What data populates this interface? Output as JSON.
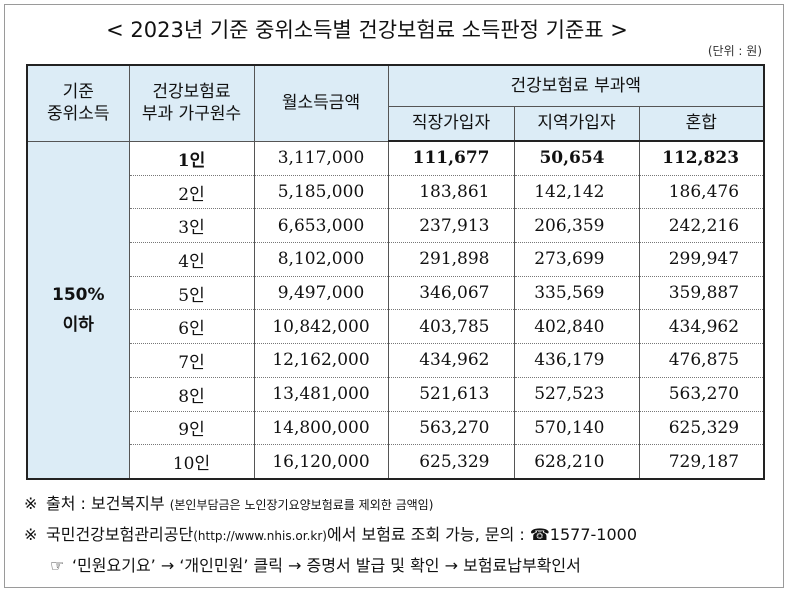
{
  "title": "< 2023년 기준 중위소득별 건강보험료 소득판정 기준표 >",
  "unit": "(단위 : 원)",
  "headers": {
    "median_income": "기준\n중위소득",
    "household": "건강보험료\n부과 가구원수",
    "monthly_income": "월소득금액",
    "premium_group": "건강보험료 부과액",
    "employee": "직장가입자",
    "regional": "지역가입자",
    "mixed": "혼합"
  },
  "band": "150%\n이하",
  "rows": [
    {
      "members": "1인",
      "income": "3,117,000",
      "employee": "111,677",
      "regional": "50,654",
      "mixed": "112,823"
    },
    {
      "members": "2인",
      "income": "5,185,000",
      "employee": "183,861",
      "regional": "142,142",
      "mixed": "186,476"
    },
    {
      "members": "3인",
      "income": "6,653,000",
      "employee": "237,913",
      "regional": "206,359",
      "mixed": "242,216"
    },
    {
      "members": "4인",
      "income": "8,102,000",
      "employee": "291,898",
      "regional": "273,699",
      "mixed": "299,947"
    },
    {
      "members": "5인",
      "income": "9,497,000",
      "employee": "346,067",
      "regional": "335,569",
      "mixed": "359,887"
    },
    {
      "members": "6인",
      "income": "10,842,000",
      "employee": "403,785",
      "regional": "402,840",
      "mixed": "434,962"
    },
    {
      "members": "7인",
      "income": "12,162,000",
      "employee": "434,962",
      "regional": "436,179",
      "mixed": "476,875"
    },
    {
      "members": "8인",
      "income": "13,481,000",
      "employee": "521,613",
      "regional": "527,523",
      "mixed": "563,270"
    },
    {
      "members": "9인",
      "income": "14,800,000",
      "employee": "563,270",
      "regional": "570,140",
      "mixed": "625,329"
    },
    {
      "members": "10인",
      "income": "16,120,000",
      "employee": "625,329",
      "regional": "628,210",
      "mixed": "729,187"
    }
  ],
  "notes": {
    "note1_mark": "※",
    "note1_text": "출처 : 보건복지부",
    "note1_small": "(본인부담금은 노인장기요양보험료를 제외한 금액임)",
    "note2_mark": "※",
    "note2_text": "국민건강보험관리공단",
    "note2_url": "(http://www.nhis.or.kr)",
    "note2_tail": "에서 보험료 조회 가능, 문의 : ☎1577-1000",
    "note3_mark": "☞",
    "note3_text": "‘민원요기요’ → ‘개인민원’ 클릭 → 증명서 발급 및 확인 → 보험료납부확인서"
  }
}
